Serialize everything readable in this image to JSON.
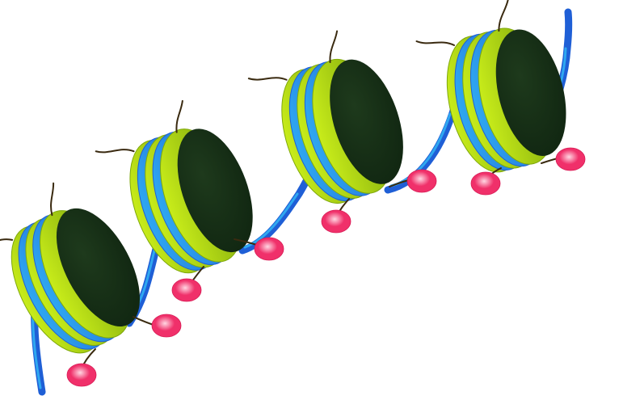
{
  "illustration": {
    "subject": "nucleosome-chain",
    "nucleosome_count": 4,
    "tag_count": 8,
    "colors": {
      "background": "#ffffff",
      "dna_strand": "#1f5fd6",
      "dna_highlight": "#2fa8f0",
      "histone_wrap_light": "#c8ec1a",
      "histone_wrap_shadow": "#7fa80c",
      "histone_core": "#0f2410",
      "histone_tail": "#3a2a10",
      "modification_tag": "#f0306a",
      "modification_tag_highlight": "#ffd6e2"
    }
  }
}
